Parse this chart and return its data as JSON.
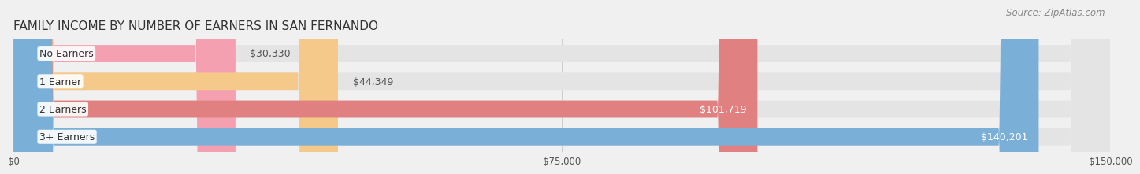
{
  "title": "FAMILY INCOME BY NUMBER OF EARNERS IN SAN FERNANDO",
  "source": "Source: ZipAtlas.com",
  "categories": [
    "No Earners",
    "1 Earner",
    "2 Earners",
    "3+ Earners"
  ],
  "values": [
    30330,
    44349,
    101719,
    140201
  ],
  "bar_colors": [
    "#f4a0b0",
    "#f5c98a",
    "#e08080",
    "#7ab0d8"
  ],
  "label_colors": [
    "#555555",
    "#555555",
    "#ffffff",
    "#ffffff"
  ],
  "max_value": 150000,
  "x_ticks": [
    0,
    75000,
    150000
  ],
  "x_tick_labels": [
    "$0",
    "$75,000",
    "$150,000"
  ],
  "bar_height": 0.62,
  "background_color": "#f0f0f0",
  "bar_bg_color": "#e4e4e4",
  "title_fontsize": 11,
  "source_fontsize": 8.5,
  "label_fontsize": 9,
  "value_fontsize": 9
}
